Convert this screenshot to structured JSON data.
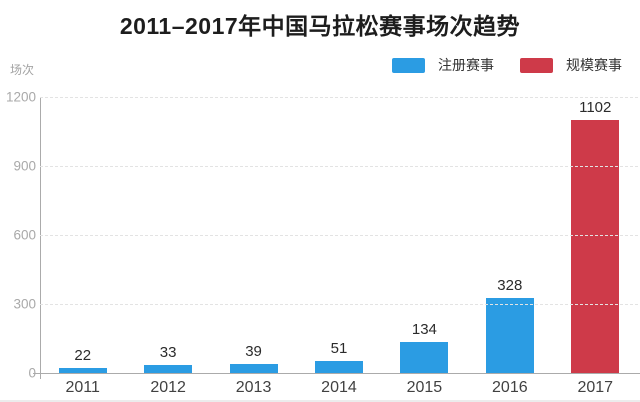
{
  "title": "2011–2017年中国马拉松赛事场次趋势",
  "y_axis_unit": "场次",
  "legend": {
    "items": [
      {
        "label": "注册赛事",
        "color": "#2B9CE3"
      },
      {
        "label": "规模赛事",
        "color": "#CE3A49"
      }
    ]
  },
  "colors": {
    "blue_series": "#2B9CE3",
    "red_series": "#CE3A49",
    "axis": "#ABABAB",
    "gridline": "#E3E3E3",
    "tick_text": "#A9A9A9",
    "value_text": "#2B2B2B",
    "category_text": "#414141",
    "title_text": "#1D1D1D"
  },
  "chart_data": {
    "type": "bar",
    "title": "2011–2017年中国马拉松赛事场次趋势",
    "categories": [
      "2011",
      "2012",
      "2013",
      "2014",
      "2015",
      "2016",
      "2017"
    ],
    "values": [
      22,
      33,
      39,
      51,
      134,
      328,
      1102
    ],
    "series_of_bar": [
      "注册赛事",
      "注册赛事",
      "注册赛事",
      "注册赛事",
      "注册赛事",
      "注册赛事",
      "规模赛事"
    ],
    "bar_colors": [
      "#2B9CE3",
      "#2B9CE3",
      "#2B9CE3",
      "#2B9CE3",
      "#2B9CE3",
      "#2B9CE3",
      "#CE3A49"
    ],
    "xlabel": "",
    "ylabel": "场次",
    "ylim": [
      0,
      1200
    ],
    "yticks": [
      0,
      300,
      600,
      900,
      1200
    ],
    "grid": "horizontal-dashed",
    "legend_position": "top-right",
    "value_labels": true
  }
}
